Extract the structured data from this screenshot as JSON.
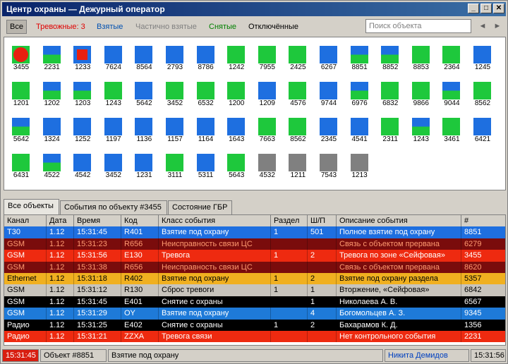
{
  "window": {
    "title": "Центр охраны — Дежурный оператор",
    "buttons": [
      "_",
      "□",
      "✕"
    ]
  },
  "filters": [
    {
      "label": "Все",
      "color": "#000000",
      "active": true
    },
    {
      "label": "Тревожные: 3",
      "color": "#e00000",
      "active": false
    },
    {
      "label": "Взятые",
      "color": "#0050b0",
      "active": false
    },
    {
      "label": "Частично взятые",
      "color": "#808080",
      "active": false
    },
    {
      "label": "Снятые",
      "color": "#008000",
      "active": false
    },
    {
      "label": "Отключённые",
      "color": "#000000",
      "active": false
    }
  ],
  "search": {
    "placeholder": "Поиск объекта"
  },
  "nav": {
    "prev": "◄",
    "next": "►"
  },
  "colors": {
    "armed": "#1e6fe0",
    "disarmed": "#1ec83c",
    "offline": "#808080",
    "alarm": "#e82010"
  },
  "objects": [
    {
      "id": "3455",
      "state": "alarm-circle"
    },
    {
      "id": "2231",
      "state": "partial"
    },
    {
      "id": "1233",
      "state": "alarm-square"
    },
    {
      "id": "7624",
      "state": "armed"
    },
    {
      "id": "8564",
      "state": "armed"
    },
    {
      "id": "2793",
      "state": "armed"
    },
    {
      "id": "8786",
      "state": "armed"
    },
    {
      "id": "1242",
      "state": "disarmed"
    },
    {
      "id": "7955",
      "state": "disarmed"
    },
    {
      "id": "2425",
      "state": "disarmed"
    },
    {
      "id": "6267",
      "state": "armed"
    },
    {
      "id": "8851",
      "state": "partial"
    },
    {
      "id": "8852",
      "state": "partial"
    },
    {
      "id": "8853",
      "state": "disarmed"
    },
    {
      "id": "2364",
      "state": "disarmed"
    },
    {
      "id": "1245",
      "state": "armed"
    },
    {
      "id": "1201",
      "state": "disarmed"
    },
    {
      "id": "1202",
      "state": "partial"
    },
    {
      "id": "1203",
      "state": "partial"
    },
    {
      "id": "1243",
      "state": "disarmed"
    },
    {
      "id": "5642",
      "state": "armed"
    },
    {
      "id": "3452",
      "state": "disarmed"
    },
    {
      "id": "6532",
      "state": "disarmed"
    },
    {
      "id": "1200",
      "state": "disarmed"
    },
    {
      "id": "1209",
      "state": "armed"
    },
    {
      "id": "4576",
      "state": "disarmed"
    },
    {
      "id": "9744",
      "state": "armed"
    },
    {
      "id": "6976",
      "state": "partial"
    },
    {
      "id": "6832",
      "state": "disarmed"
    },
    {
      "id": "9866",
      "state": "disarmed"
    },
    {
      "id": "9044",
      "state": "partial"
    },
    {
      "id": "8562",
      "state": "disarmed"
    },
    {
      "id": "5642",
      "state": "partial"
    },
    {
      "id": "1324",
      "state": "armed"
    },
    {
      "id": "1252",
      "state": "armed"
    },
    {
      "id": "1197",
      "state": "armed"
    },
    {
      "id": "1136",
      "state": "armed"
    },
    {
      "id": "1157",
      "state": "armed"
    },
    {
      "id": "1164",
      "state": "armed"
    },
    {
      "id": "1643",
      "state": "armed"
    },
    {
      "id": "7663",
      "state": "disarmed"
    },
    {
      "id": "8562",
      "state": "disarmed"
    },
    {
      "id": "2345",
      "state": "armed"
    },
    {
      "id": "4541",
      "state": "armed"
    },
    {
      "id": "2311",
      "state": "disarmed"
    },
    {
      "id": "1243",
      "state": "partial"
    },
    {
      "id": "3461",
      "state": "disarmed"
    },
    {
      "id": "6421",
      "state": "armed"
    },
    {
      "id": "6431",
      "state": "disarmed"
    },
    {
      "id": "4522",
      "state": "partial"
    },
    {
      "id": "4542",
      "state": "armed"
    },
    {
      "id": "3452",
      "state": "armed"
    },
    {
      "id": "1231",
      "state": "armed"
    },
    {
      "id": "3111",
      "state": "disarmed"
    },
    {
      "id": "5311",
      "state": "armed"
    },
    {
      "id": "5643",
      "state": "disarmed"
    },
    {
      "id": "4532",
      "state": "offline"
    },
    {
      "id": "1211",
      "state": "offline"
    },
    {
      "id": "7543",
      "state": "offline"
    },
    {
      "id": "1213",
      "state": "offline"
    }
  ],
  "tabs": [
    {
      "label": "Все объекты",
      "active": true
    },
    {
      "label": "События по объекту #3455",
      "active": false
    },
    {
      "label": "Состояние ГБР",
      "active": false
    }
  ],
  "columns": [
    "Канал",
    "Дата",
    "Время",
    "Код",
    "Класс события",
    "Раздел",
    "Ш/П",
    "Описание события",
    "#"
  ],
  "rows": [
    {
      "cells": [
        "Т30",
        "1.12",
        "15:31:45",
        "R401",
        "Взятие под охрану",
        "1",
        "501",
        "Полное взятие под охрану",
        "8851"
      ],
      "bg": "#1e6fe0",
      "fg": "#ffffff"
    },
    {
      "cells": [
        "GSM",
        "1.12",
        "15:31:23",
        "R656",
        "Неисправность связи ЦС",
        "",
        "",
        "Связь с объектом прервана",
        "6279"
      ],
      "bg": "#7a0c0c",
      "fg": "#ff9a70"
    },
    {
      "cells": [
        "GSM",
        "1.12",
        "15:31:56",
        "E130",
        "Тревога",
        "1",
        "2",
        "Тревога по зоне «Сейфовая»",
        "3455"
      ],
      "bg": "#ee2a10",
      "fg": "#ffffff"
    },
    {
      "cells": [
        "GSM",
        "1.12",
        "15:31:38",
        "R656",
        "Неисправность связи ЦС",
        "",
        "",
        "Связь с объектом прервана",
        "8620"
      ],
      "bg": "#7a0c0c",
      "fg": "#ff9a70"
    },
    {
      "cells": [
        "Ethernet",
        "1.12",
        "15:31:18",
        "R402",
        "Взятие под охрану",
        "1",
        "2",
        "Взятие под охрану раздела",
        "5357"
      ],
      "bg": "#f0b020",
      "fg": "#000000"
    },
    {
      "cells": [
        "GSM",
        "1.12",
        "15:31:12",
        "R130",
        "Сброс тревоги",
        "1",
        "1",
        "Вторжение, «Сейфовая»",
        "6842"
      ],
      "bg": "#c8c4bc",
      "fg": "#000000"
    },
    {
      "cells": [
        "GSM",
        "1.12",
        "15:31:45",
        "E401",
        "Снятие с охраны",
        "",
        "1",
        "Николаева А. В.",
        "6567"
      ],
      "bg": "#000000",
      "fg": "#ffffff"
    },
    {
      "cells": [
        "GSM",
        "1.12",
        "15:31:29",
        "OY",
        "Взятие под охрану",
        "",
        "4",
        "Богомольцев А. З.",
        "9345"
      ],
      "bg": "#1e7ad8",
      "fg": "#ffffff"
    },
    {
      "cells": [
        "Радио",
        "1.12",
        "15:31:25",
        "E402",
        "Снятие с охраны",
        "1",
        "2",
        "Бахарамов К. Д.",
        "1356"
      ],
      "bg": "#000000",
      "fg": "#ffffff"
    },
    {
      "cells": [
        "Радио",
        "1.12",
        "15:31:21",
        "ZZXA",
        "Тревога связи",
        "",
        "",
        "Нет контрольного события",
        "2231"
      ],
      "bg": "#ee2a10",
      "fg": "#ffffff"
    }
  ],
  "status": {
    "time_left": "15:31:45",
    "object": "Объект #8851",
    "event": "Взятие под охрану",
    "operator": "Никита Демидов",
    "time_right": "15:31:56"
  }
}
